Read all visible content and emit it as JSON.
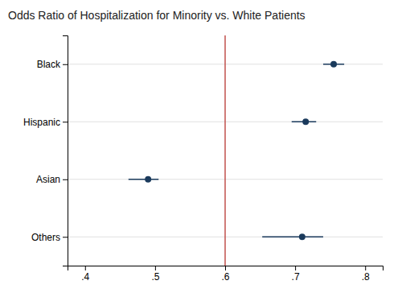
{
  "chart_data": {
    "type": "forest",
    "title": "Odds Ratio of Hospitalization for Minority vs. White Patients",
    "orientation": "horizontal",
    "categories": [
      "Black",
      "Hispanic",
      "Asian",
      "Others"
    ],
    "values": [
      0.755,
      0.715,
      0.49,
      0.71
    ],
    "ci_lower": [
      0.74,
      0.695,
      0.462,
      0.653
    ],
    "ci_upper": [
      0.77,
      0.73,
      0.505,
      0.74
    ],
    "color": "#1a3a5c",
    "reference_line": {
      "value": 0.6,
      "color": "#c0504d"
    },
    "xlim": [
      0.375,
      0.825
    ],
    "xticks": [
      {
        "value": 0.4,
        "label": ".4"
      },
      {
        "value": 0.5,
        "label": ".5"
      },
      {
        "value": 0.6,
        "label": ".6"
      },
      {
        "value": 0.7,
        "label": ".7"
      },
      {
        "value": 0.8,
        "label": ".8"
      }
    ],
    "grid": true
  }
}
